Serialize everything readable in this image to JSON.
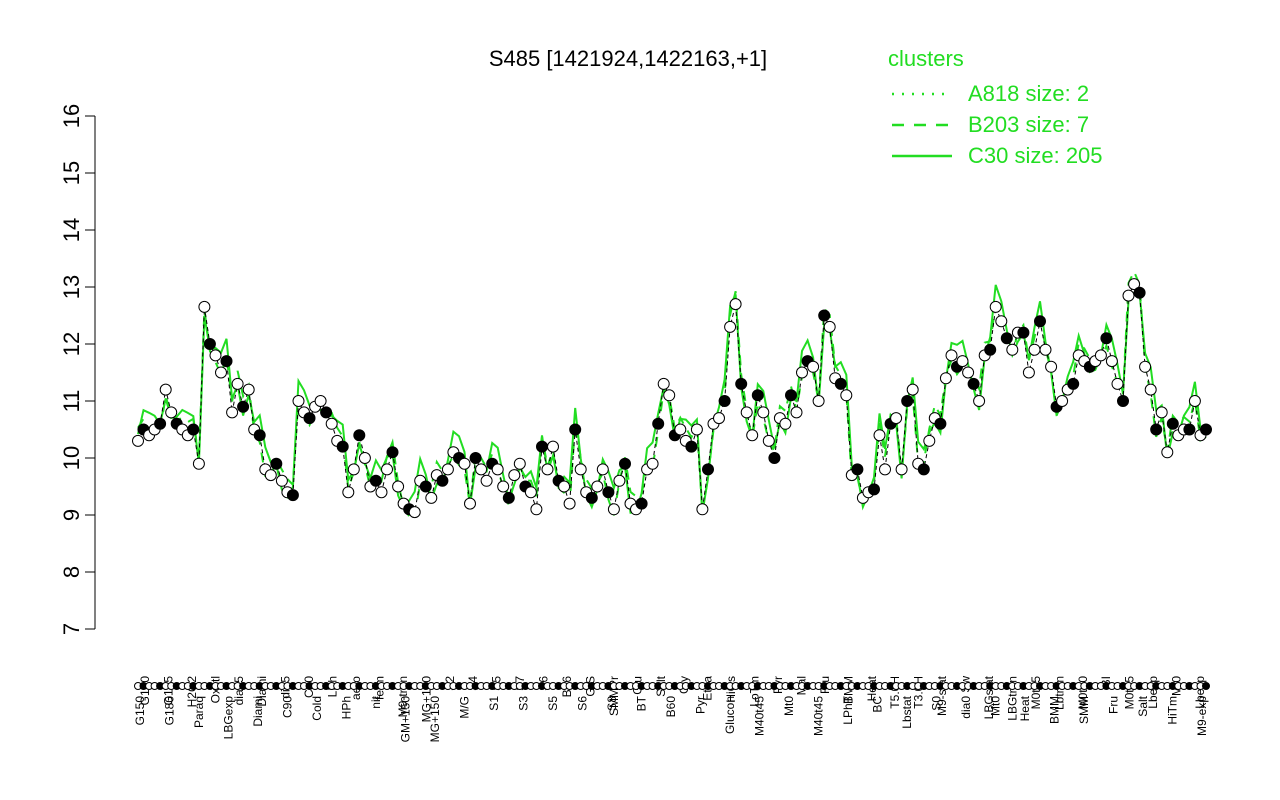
{
  "chart_data": {
    "type": "line",
    "title": "S485 [1421924,1422163,+1]",
    "xlabel": "",
    "ylabel": "",
    "ylim": [
      7,
      16
    ],
    "yticks": [
      7,
      8,
      9,
      10,
      11,
      12,
      13,
      14,
      15,
      16
    ],
    "xlabels_top": [
      "G150",
      "G135",
      "H2O2",
      "Oxctl",
      "dia15",
      "Diami",
      "dia5",
      "C30",
      "LPh",
      "aero",
      "ferm",
      "M9-tran",
      "MG+120",
      "S2",
      "S4",
      "S5",
      "S7",
      "S6",
      "B36",
      "G/S",
      "SMMPr",
      "Glu",
      "Salt",
      "Gly",
      "Etha",
      "HiOs",
      "LoTm",
      "Pyr",
      "Mal",
      "Fru",
      "BMM",
      "Heat",
      "T5.0H",
      "T3.0H",
      "M9-stat",
      "Sw",
      "LBGstat",
      "LBGtran",
      "M0t45",
      "Lbtran",
      "M0t90",
      "BI",
      "M0t45",
      "Lbexp",
      "Mt0",
      "Lbexp"
    ],
    "xlabels_bottom": [
      "G150",
      "G180",
      "Paraq",
      "LBGexp",
      "Diami",
      "C90",
      "Cold",
      "HPh",
      "nit",
      "GM+150",
      "MG+150",
      "M/G",
      "S1",
      "S3",
      "S5",
      "S6",
      "S8",
      "BT",
      "B60",
      "Pyr",
      "Glucon",
      "M40t45",
      "Mt0",
      "M40t45",
      "LPhT",
      "BC",
      "Lbstat",
      "S0",
      "dia0",
      "Mt0",
      "Heat",
      "BMM",
      "SMM",
      "Fru",
      "Salt",
      "HiTm",
      "M9-exp"
    ],
    "series": [
      {
        "name": "A818 size: 2",
        "style": "dotted",
        "values": []
      },
      {
        "name": "B203 size: 7",
        "style": "dashed",
        "values": []
      },
      {
        "name": "C30 size: 205",
        "style": "solid",
        "values": []
      }
    ],
    "points": [
      10.3,
      10.5,
      10.4,
      10.5,
      10.6,
      11.2,
      10.8,
      10.6,
      10.5,
      10.4,
      10.5,
      9.9,
      12.65,
      12.0,
      11.8,
      11.5,
      11.7,
      10.8,
      11.3,
      10.9,
      11.2,
      10.5,
      10.4,
      9.8,
      9.7,
      9.9,
      9.6,
      9.4,
      9.35,
      11.0,
      10.8,
      10.7,
      10.9,
      11.0,
      10.8,
      10.6,
      10.3,
      10.2,
      9.4,
      9.8,
      10.4,
      10.0,
      9.5,
      9.6,
      9.4,
      9.8,
      10.1,
      9.5,
      9.2,
      9.1,
      9.05,
      9.6,
      9.5,
      9.3,
      9.7,
      9.6,
      9.8,
      10.1,
      10.0,
      9.9,
      9.2,
      10.0,
      9.8,
      9.6,
      9.9,
      9.8,
      9.5,
      9.3,
      9.7,
      9.9,
      9.5,
      9.4,
      9.1,
      10.2,
      9.8,
      10.2,
      9.6,
      9.5,
      9.2,
      10.5,
      9.8,
      9.4,
      9.3,
      9.5,
      9.8,
      9.4,
      9.1,
      9.6,
      9.9,
      9.2,
      9.1,
      9.2,
      9.8,
      9.9,
      10.6,
      11.3,
      11.1,
      10.4,
      10.5,
      10.3,
      10.2,
      10.5,
      9.1,
      9.8,
      10.6,
      10.7,
      11.0,
      12.3,
      12.7,
      11.3,
      10.8,
      10.4,
      11.1,
      10.8,
      10.3,
      10.0,
      10.7,
      10.6,
      11.1,
      10.8,
      11.5,
      11.7,
      11.6,
      11.0,
      12.5,
      12.3,
      11.4,
      11.3,
      11.1,
      9.7,
      9.8,
      9.3,
      9.4,
      9.45,
      10.4,
      9.8,
      10.6,
      10.7,
      9.8,
      11.0,
      11.2,
      9.9,
      9.8,
      10.3,
      10.7,
      10.6,
      11.4,
      11.8,
      11.6,
      11.7,
      11.5,
      11.3,
      11.0,
      11.8,
      11.9,
      12.65,
      12.4,
      12.1,
      11.9,
      12.2,
      12.2,
      11.5,
      11.9,
      12.4,
      11.9,
      11.6,
      10.9,
      11.0,
      11.2,
      11.3,
      11.8,
      11.7,
      11.6,
      11.7,
      11.8,
      12.1,
      11.7,
      11.3,
      11.0,
      12.85,
      13.05,
      12.9,
      11.6,
      11.2,
      10.5,
      10.8,
      10.1,
      10.6,
      10.4,
      10.5,
      10.5,
      11.0,
      10.4,
      10.5
    ]
  },
  "legend": {
    "title": "clusters",
    "items": [
      {
        "label": "A818 size: 2",
        "style": "dotted"
      },
      {
        "label": "B203 size: 7",
        "style": "dashed"
      },
      {
        "label": "C30 size: 205",
        "style": "solid"
      }
    ],
    "color": "#22dd22"
  },
  "colors": {
    "points_stroke": "#000000",
    "series_line": "#000000",
    "cluster_green": "#22dd22"
  }
}
